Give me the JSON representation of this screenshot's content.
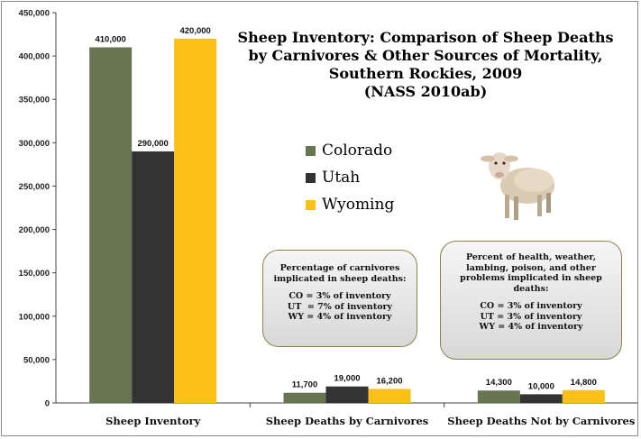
{
  "chart_data": {
    "type": "bar",
    "categories": [
      "Sheep Inventory",
      "Sheep Deaths by Carnivores",
      "Sheep Deaths Not by Carnivores"
    ],
    "series": [
      {
        "name": "Colorado",
        "values": [
          410000,
          11700,
          14300
        ],
        "labels": [
          "410,000",
          "11,700",
          "14,300"
        ],
        "color": "#687553"
      },
      {
        "name": "Utah",
        "values": [
          290000,
          19000,
          10000
        ],
        "labels": [
          "290,000",
          "19,000",
          "10,000"
        ],
        "color": "#333333"
      },
      {
        "name": "Wyoming",
        "values": [
          420000,
          16200,
          14800
        ],
        "labels": [
          "420,000",
          "16,200",
          "14,800"
        ],
        "color": "#fcc016"
      }
    ],
    "ylim": [
      0,
      450000
    ],
    "yticks": [
      0,
      50000,
      100000,
      150000,
      200000,
      250000,
      300000,
      350000,
      400000,
      450000
    ],
    "ytick_labels": [
      "0",
      "50,000",
      "100,000",
      "150,000",
      "200,000",
      "250,000",
      "300,000",
      "350,000",
      "400,000",
      "450,000"
    ],
    "title_lines": [
      "Sheep Inventory: Comparison of Sheep Deaths",
      "by Carnivores & Other Sources of Mortality,",
      "Southern Rockies, 2009",
      "(NASS 2010ab)"
    ],
    "legend_position": "center-right",
    "grid": false,
    "xlabel": "",
    "ylabel": ""
  },
  "legend": {
    "items": [
      {
        "label": "Colorado",
        "color": "#687553"
      },
      {
        "label": "Utah",
        "color": "#333333"
      },
      {
        "label": "Wyoming",
        "color": "#fcc016"
      }
    ]
  },
  "callouts": {
    "carnivores": {
      "heading": [
        "Percentage of carnivores",
        "implicated in sheep deaths:"
      ],
      "lines": [
        "CO = 3% of inventory",
        "UT  = 7% of inventory",
        "WY = 4% of inventory"
      ]
    },
    "other": {
      "heading": [
        "Percent of health, weather,",
        "lambing, poison, and other",
        "problems implicated in sheep",
        "deaths:"
      ],
      "lines": [
        "CO = 3% of inventory",
        "UT = 3% of inventory",
        "WY = 4% of inventory"
      ]
    }
  },
  "image": {
    "icon": "sheep-icon"
  }
}
